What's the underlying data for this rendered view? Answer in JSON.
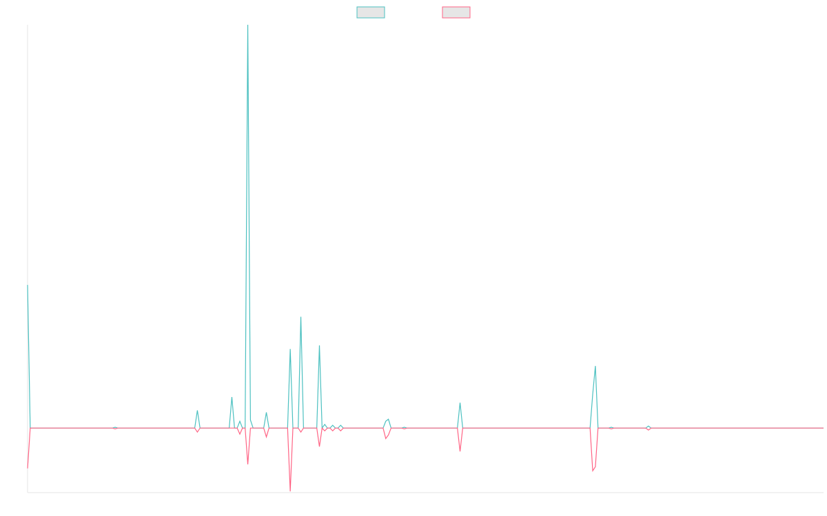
{
  "chart_data": {
    "type": "line",
    "x": [
      0,
      1,
      32,
      33,
      34,
      63,
      64,
      65,
      76,
      77,
      78,
      79,
      80,
      81,
      82,
      83,
      84,
      85,
      89,
      90,
      91,
      98,
      99,
      100,
      102,
      103,
      104,
      109,
      110,
      111,
      112,
      113,
      114,
      115,
      116,
      117,
      118,
      119,
      134,
      135,
      136,
      137,
      141,
      142,
      143,
      162,
      163,
      164,
      212,
      213,
      214,
      215,
      219,
      220,
      221,
      233,
      234,
      235,
      300
    ],
    "series": [
      {
        "color": "#4bc0c0",
        "values": [
          35.5,
          0,
          0,
          0.2,
          0,
          0,
          4.4,
          0,
          0,
          7.7,
          0,
          0,
          1.7,
          0,
          0,
          100,
          2,
          0,
          0,
          3.9,
          0,
          0,
          19.6,
          0,
          0,
          27.6,
          0,
          0,
          20.5,
          0,
          0.9,
          0,
          0,
          0.7,
          0,
          0,
          0.7,
          0,
          0,
          1.7,
          2.2,
          0,
          0,
          0.2,
          0,
          0,
          6.3,
          0,
          0,
          8.4,
          15.4,
          0,
          0,
          0.2,
          0,
          0,
          0.5,
          0,
          0
        ]
      },
      {
        "color": "#ff6384",
        "values": [
          -10,
          0,
          0,
          -0.2,
          0,
          0,
          -1,
          0,
          0,
          0,
          0,
          0,
          -1.5,
          0,
          0,
          -9,
          0,
          0,
          0,
          -2.2,
          0,
          0,
          -15.7,
          0,
          0,
          -1,
          0,
          0,
          -4.6,
          0,
          -0.7,
          0,
          0,
          -0.7,
          0,
          0,
          -0.7,
          0,
          0,
          -2.6,
          -1.7,
          0,
          0,
          -0.2,
          0,
          0,
          -5.8,
          0,
          0,
          -10.6,
          -9.6,
          0,
          0,
          -0.2,
          0,
          0,
          -0.5,
          0,
          0
        ]
      }
    ],
    "xlim": [
      0,
      300
    ],
    "ylim": [
      -16,
      100
    ],
    "grid": false,
    "legend": "top"
  }
}
